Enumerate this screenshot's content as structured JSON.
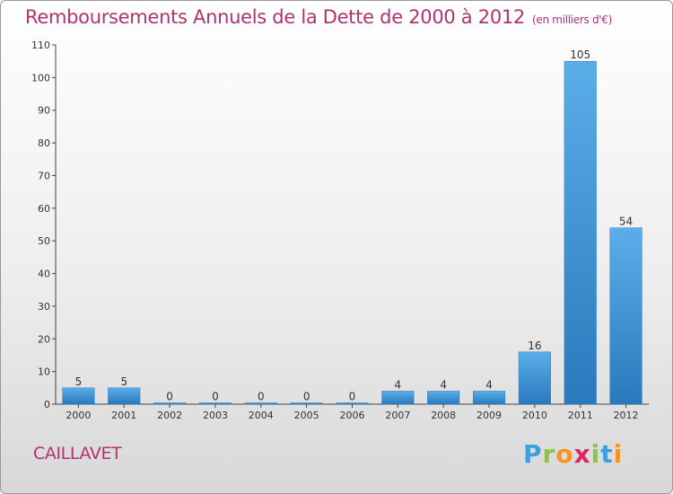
{
  "header": {
    "title": "Remboursements Annuels de la Dette de 2000 à 2012",
    "unit": "(en milliers d'€)"
  },
  "footer": {
    "commune": "CAILLAVET",
    "brand": "Proxiti"
  },
  "chart_data": {
    "type": "bar",
    "title": "Remboursements Annuels de la Dette de 2000 à 2012",
    "subtitle": "(en milliers d'€)",
    "xlabel": "",
    "ylabel": "",
    "categories": [
      "2000",
      "2001",
      "2002",
      "2003",
      "2004",
      "2005",
      "2006",
      "2007",
      "2008",
      "2009",
      "2010",
      "2011",
      "2012"
    ],
    "values": [
      5,
      5,
      0,
      0,
      0,
      0,
      0,
      4,
      4,
      4,
      16,
      105,
      54
    ],
    "data_labels": [
      "5",
      "5",
      "0",
      "0",
      "0",
      "0",
      "0",
      "4",
      "4",
      "4",
      "16",
      "105",
      "54"
    ],
    "ylim": [
      0,
      110
    ],
    "yticks": [
      0,
      10,
      20,
      30,
      40,
      50,
      60,
      70,
      80,
      90,
      100,
      110
    ],
    "ytick_labels": [
      "0",
      "10",
      "20",
      "30",
      "40",
      "50",
      "60",
      "70",
      "80",
      "90",
      "100",
      "110"
    ],
    "grid": false,
    "bar_color": "#3a8fd6",
    "title_color": "#b0336e"
  }
}
